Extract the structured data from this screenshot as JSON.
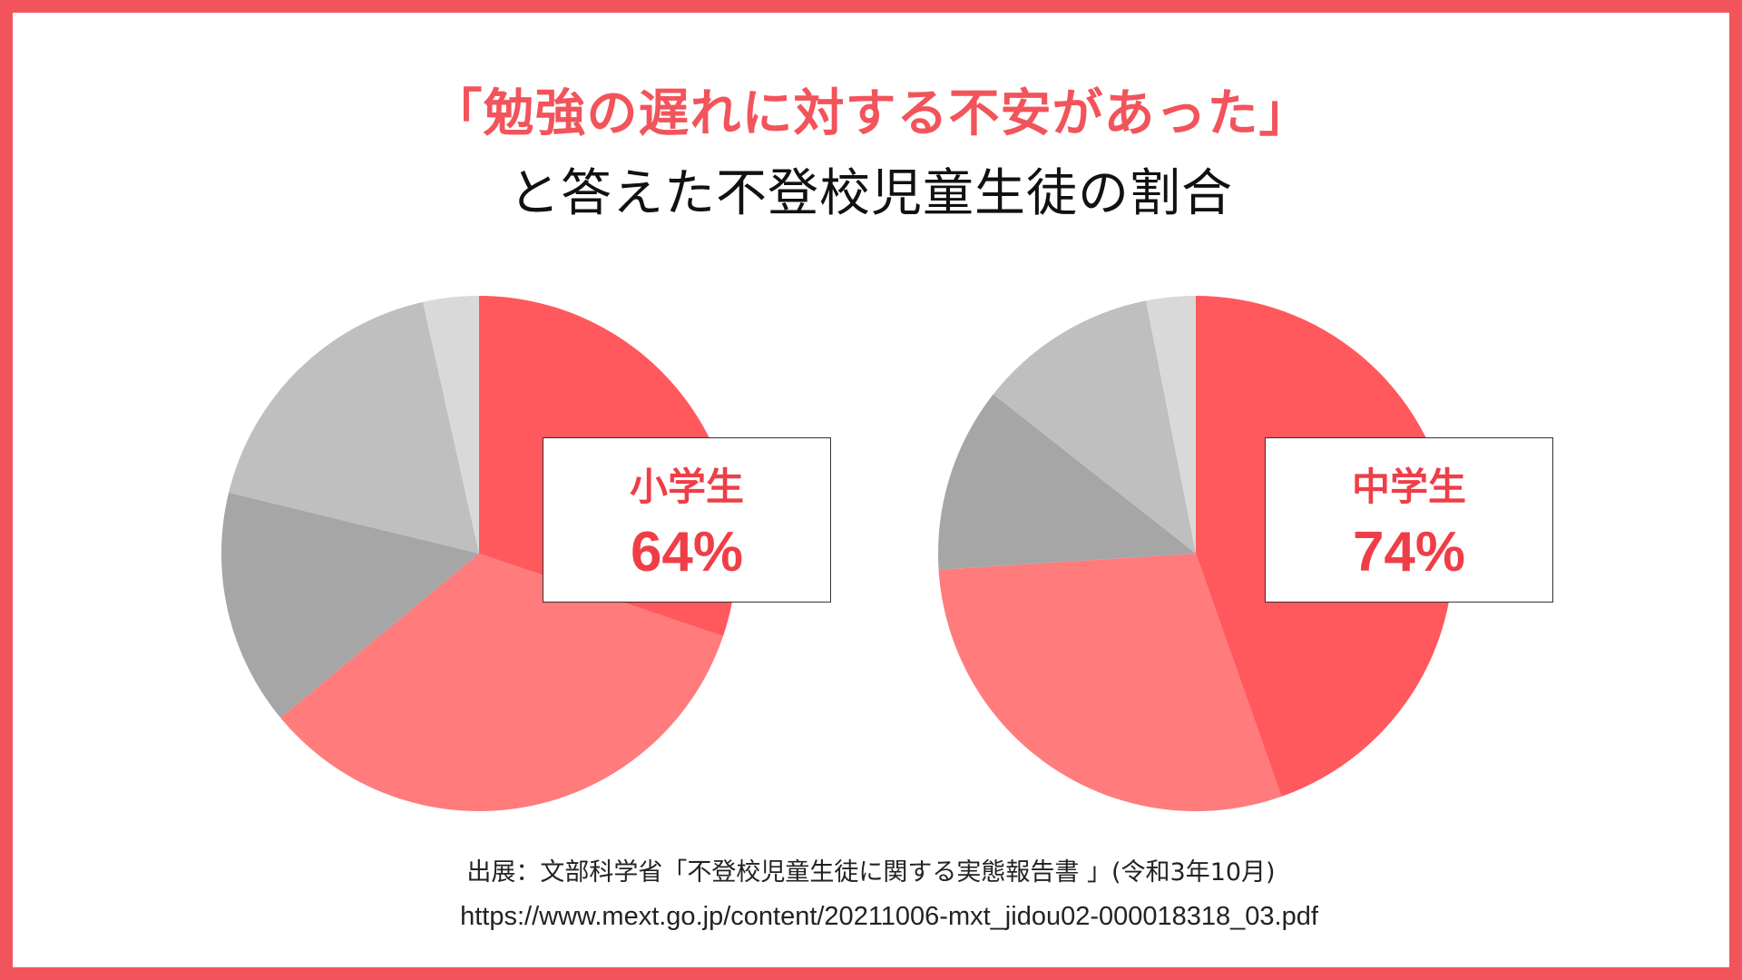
{
  "title": {
    "line1": "「勉強の遅れに対する不安があった」",
    "line2": "と答えた不登校児童生徒の割合"
  },
  "chart_data": [
    {
      "type": "pie",
      "label": "小学生",
      "percent_text": "64%",
      "slices": [
        {
          "value": 30.2,
          "color": "#ff585d"
        },
        {
          "value": 33.8,
          "color": "#ff7b7c"
        },
        {
          "value": 14.8,
          "color": "#a6a6a6"
        },
        {
          "value": 17.7,
          "color": "#bfbfbf"
        },
        {
          "value": 3.5,
          "color": "#d9d9d9"
        }
      ]
    },
    {
      "type": "pie",
      "label": "中学生",
      "percent_text": "74%",
      "slices": [
        {
          "value": 44.6,
          "color": "#ff585d"
        },
        {
          "value": 29.4,
          "color": "#ff7b7c"
        },
        {
          "value": 11.6,
          "color": "#a6a6a6"
        },
        {
          "value": 11.3,
          "color": "#bfbfbf"
        },
        {
          "value": 3.1,
          "color": "#d9d9d9"
        }
      ]
    }
  ],
  "source": {
    "text": "出展：文部科学省「不登校児童生徒に関する実態報告書 」(令和3年10月)",
    "url": "https://www.mext.go.jp/content/20211006-mxt_jidou02-000018318_03.pdf"
  }
}
